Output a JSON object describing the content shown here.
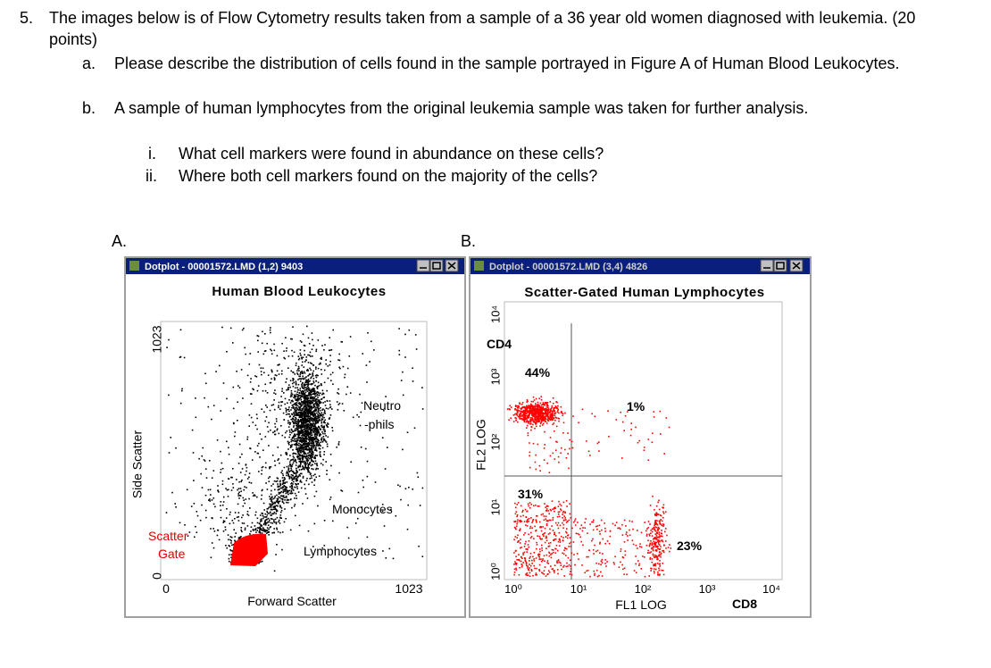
{
  "question": {
    "number": "5.",
    "text": "The images below is of Flow Cytometry results taken from a sample of a 36 year old women diagnosed with leukemia. (20 points)",
    "parts": [
      {
        "label": "a.",
        "text": "Please describe the distribution of cells found in the sample portrayed in Figure A of Human Blood Leukocytes."
      },
      {
        "label": "b.",
        "text": "A sample of human lymphocytes from the original leukemia sample was taken for further analysis.",
        "subparts": [
          {
            "label": "i.",
            "text": "What cell markers were found in abundance on these cells?"
          },
          {
            "label": "ii.",
            "text": "Where both cell markers found on the majority of the cells?"
          }
        ]
      }
    ]
  },
  "figures": [
    {
      "label": "A.",
      "window_title": "Dotplot - 00001572.LMD (1,2) 9403",
      "plot_title": "Human Blood Leukocytes",
      "x_label": "Forward Scatter",
      "y_label": "Side Scatter",
      "x_ticks": [
        "0",
        "1023"
      ],
      "y_ticks": [
        "0",
        "1023"
      ],
      "annotations": [
        "Neutro",
        "-phils",
        "Monocytes",
        "Lymphocytes",
        "Scatter",
        "Gate"
      ]
    },
    {
      "label": "B.",
      "window_title": "Dotplot - 00001572.LMD (3,4) 4826",
      "plot_title": "Scatter-Gated Human Lymphocytes",
      "x_label": "FL1 LOG",
      "x_marker": "CD8",
      "y_label": "FL2 LOG",
      "y_marker": "CD4",
      "x_ticks": [
        "10⁰",
        "10¹",
        "10²",
        "10³",
        "10⁴"
      ],
      "y_ticks": [
        "10⁰",
        "10¹",
        "10²",
        "10³",
        "10⁴"
      ],
      "quadrants": [
        "44%",
        "1%",
        "31%",
        "23%"
      ]
    }
  ]
}
